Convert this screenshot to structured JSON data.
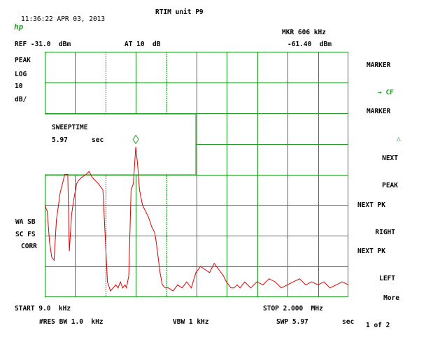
{
  "header": {
    "timestamp": "11:36:22 APR 03, 2013",
    "title": "RTIM unit P9",
    "logo": "hp"
  },
  "top_line": {
    "ref": "REF -31.0  dBm",
    "atten": "AT 10  dB",
    "marker_label": "MKR 606 kHz",
    "marker_value": "-61.40  dBm"
  },
  "left_annotations": {
    "detector": "PEAK",
    "scale": "LOG",
    "scale_value": "10",
    "scale_unit": "dB/",
    "wa": "WA SB",
    "sc": "SC FS",
    "corr": "CORR"
  },
  "sweep_box": {
    "label": "SWEEPTIME",
    "value": "5.97",
    "unit": "sec"
  },
  "softkeys": [
    {
      "line1": "MARKER",
      "line2": "→ CF"
    },
    {
      "line1": "MARKER",
      "line2": "△"
    },
    {
      "line1": "NEXT",
      "line2": "PEAK"
    },
    {
      "line1": "NEXT PK",
      "line2": "RIGHT"
    },
    {
      "line1": "NEXT PK",
      "line2": "LEFT"
    },
    {
      "line1": "More",
      "line2": "1 of 2"
    }
  ],
  "footer": {
    "start": "START 9.0  kHz",
    "stop": "STOP 2.000  MHz",
    "rbw": "#RES BW 1.0  kHz",
    "vbw": "VBW 1 kHz",
    "swp": "SWP 5.97",
    "swp_unit": "sec"
  },
  "colors": {
    "grid": "#1a9a1a",
    "trace": "#e00000",
    "marker": "#2a9d2a"
  },
  "chart_data": {
    "type": "line",
    "title": "",
    "x_unit": "kHz",
    "x_start": 9.0,
    "x_stop": 2000,
    "y_ref_dbm": -31.0,
    "y_scale_db_per_div": 10,
    "grid": true,
    "marker": {
      "x_khz": 606,
      "y_dbm": -61.4
    },
    "series": [
      {
        "x_khz": [
          9,
          25,
          40,
          55,
          70,
          85,
          110,
          140,
          160,
          170,
          185,
          200,
          218,
          230,
          250,
          280,
          300,
          320,
          340,
          360,
          390,
          420,
          440,
          475,
          490,
          505,
          520,
          535,
          545,
          560,
          575,
          590,
          606,
          618,
          630,
          650,
          670,
          690,
          710,
          730,
          740,
          750,
          765,
          780,
          800,
          820,
          850,
          880,
          910,
          940,
          970,
          1000,
          1030,
          1060,
          1090,
          1120,
          1150,
          1180,
          1200,
          1230,
          1250,
          1270,
          1290,
          1320,
          1360,
          1400,
          1440,
          1480,
          1520,
          1560,
          1600,
          1640,
          1680,
          1720,
          1760,
          1800,
          1840,
          1880,
          1920,
          1960,
          2000
        ],
        "y_dbm": [
          -81,
          -83,
          -93,
          -98,
          -99,
          -86,
          -77,
          -71,
          -71,
          -96,
          -84,
          -79,
          -74,
          -73,
          -72,
          -71,
          -70,
          -72,
          -73,
          -74,
          -76,
          -106,
          -109,
          -107,
          -108,
          -106,
          -108,
          -107,
          -108,
          -104,
          -76,
          -74,
          -62,
          -68,
          -76,
          -81,
          -83,
          -85,
          -88,
          -90,
          -93,
          -97,
          -103,
          -107,
          -108,
          -108,
          -109,
          -107,
          -108,
          -106,
          -108,
          -103,
          -101,
          -102,
          -103,
          -100,
          -102,
          -104,
          -106,
          -108,
          -108,
          -107,
          -108,
          -106,
          -108,
          -106,
          -107,
          -105,
          -106,
          -108,
          -107,
          -106,
          -105,
          -107,
          -106,
          -107,
          -106,
          -108,
          -107,
          -106,
          -107
        ]
      }
    ]
  }
}
